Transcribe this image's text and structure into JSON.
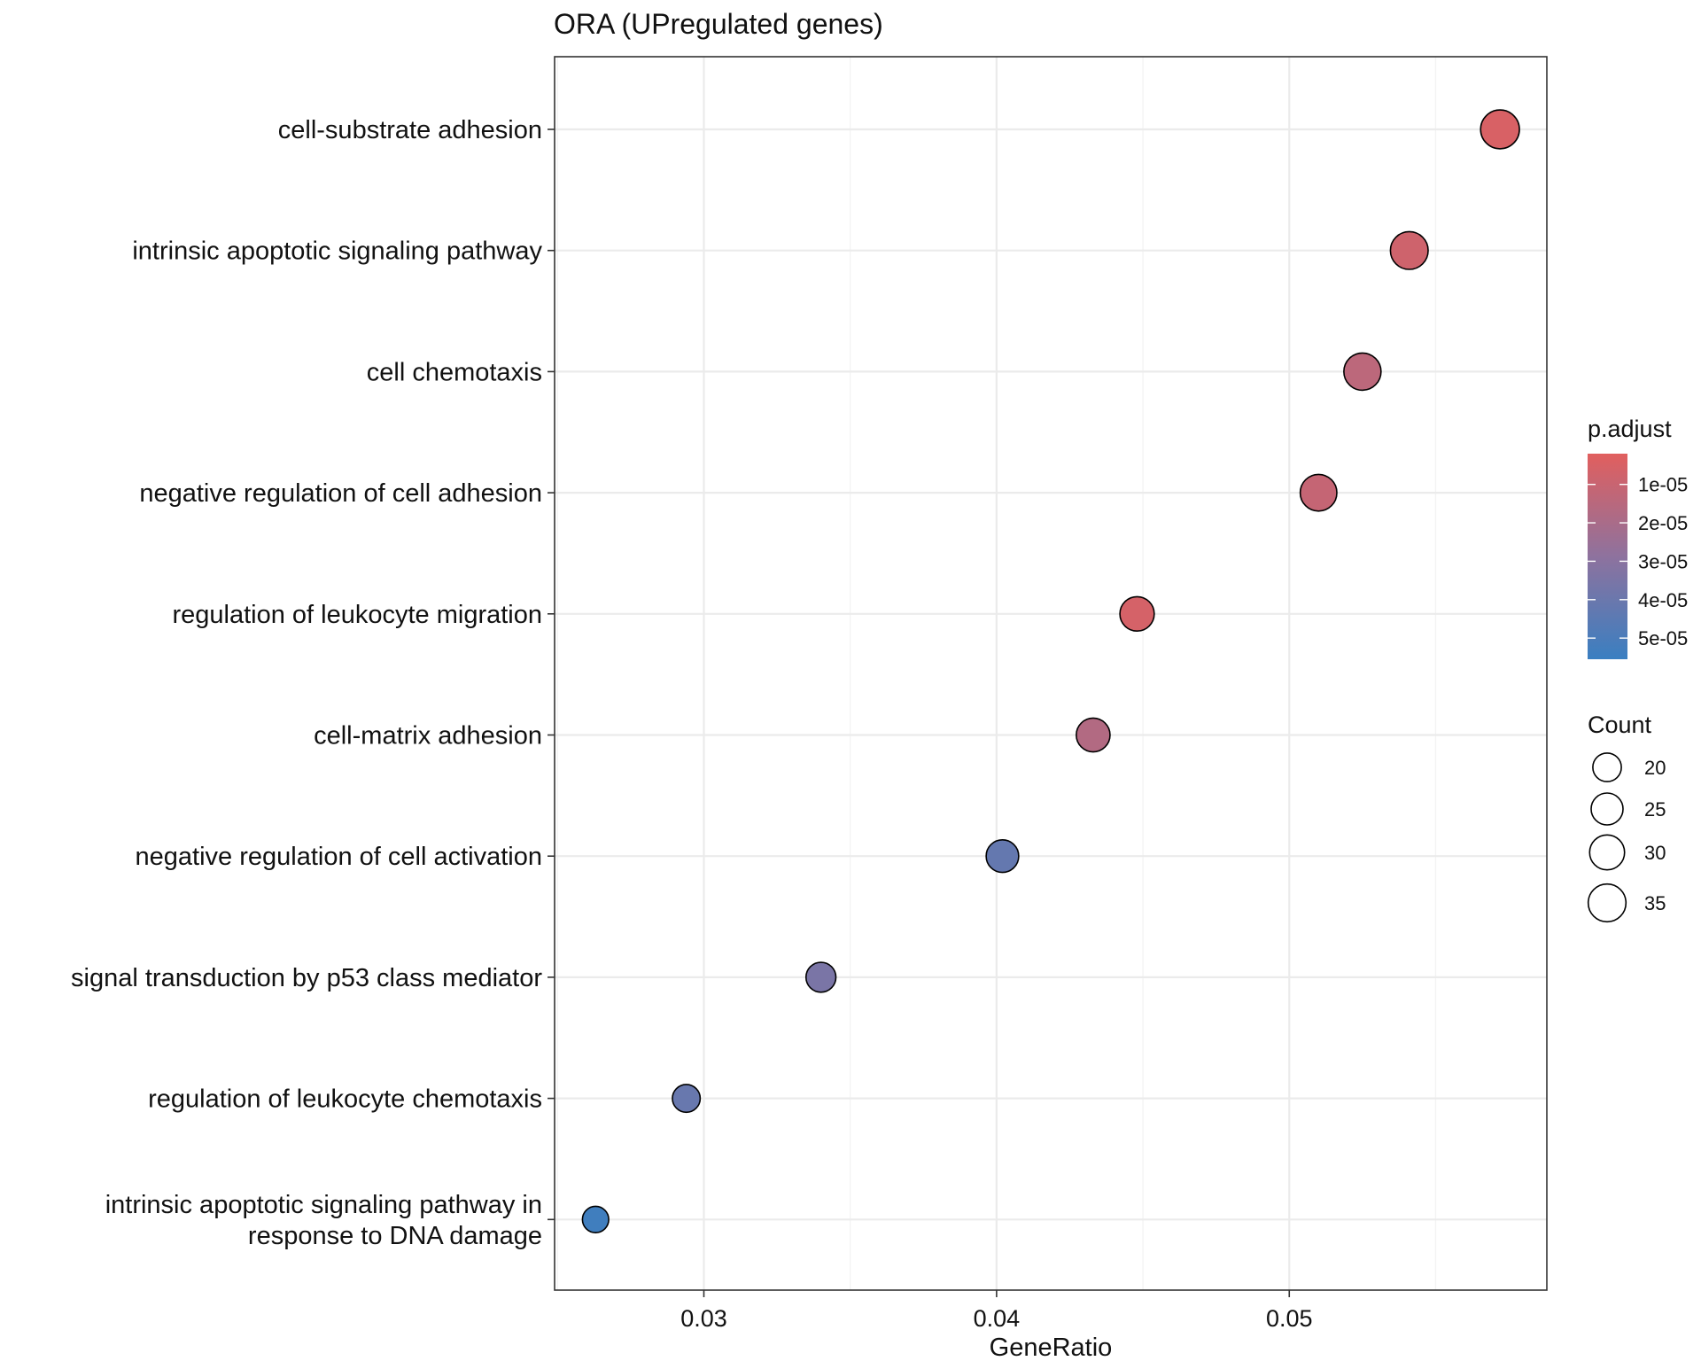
{
  "chart_data": {
    "type": "scatter",
    "title": "ORA (UPregulated genes)",
    "xlabel": "GeneRatio",
    "ylabel": "",
    "xlim": [
      0.0249,
      0.0588
    ],
    "x_ticks": [
      0.03,
      0.04,
      0.05
    ],
    "x_tick_labels": [
      "0.03",
      "0.04",
      "0.05"
    ],
    "grid": true,
    "points": [
      {
        "term": [
          "cell-substrate adhesion"
        ],
        "gene_ratio": 0.0572,
        "count": 37,
        "p_adjust": 5e-06
      },
      {
        "term": [
          "intrinsic apoptotic signaling pathway"
        ],
        "gene_ratio": 0.0541,
        "count": 35,
        "p_adjust": 8e-06
      },
      {
        "term": [
          "cell chemotaxis"
        ],
        "gene_ratio": 0.0525,
        "count": 34,
        "p_adjust": 1.4e-05
      },
      {
        "term": [
          "negative regulation of cell adhesion"
        ],
        "gene_ratio": 0.051,
        "count": 33,
        "p_adjust": 1.1e-05
      },
      {
        "term": [
          "regulation of leukocyte migration"
        ],
        "gene_ratio": 0.0448,
        "count": 29,
        "p_adjust": 6e-06
      },
      {
        "term": [
          "cell-matrix adhesion"
        ],
        "gene_ratio": 0.0433,
        "count": 28,
        "p_adjust": 1.7e-05
      },
      {
        "term": [
          "negative regulation of cell activation"
        ],
        "gene_ratio": 0.0402,
        "count": 26,
        "p_adjust": 4.2e-05
      },
      {
        "term": [
          "signal transduction by p53 class mediator"
        ],
        "gene_ratio": 0.034,
        "count": 22,
        "p_adjust": 3.5e-05
      },
      {
        "term": [
          "regulation of leukocyte chemotaxis"
        ],
        "gene_ratio": 0.0294,
        "count": 19,
        "p_adjust": 4.1e-05
      },
      {
        "term": [
          "intrinsic apoptotic signaling pathway in",
          "response to DNA damage"
        ],
        "gene_ratio": 0.0263,
        "count": 17,
        "p_adjust": 5.35e-05
      }
    ],
    "color_legend": {
      "title": "p.adjust",
      "range": [
        2e-06,
        5.55e-05
      ],
      "low_color": "#E15F5E",
      "high_color": "#3A7FC1",
      "mid_color": "#8E729E",
      "ticks": [
        1e-05,
        2e-05,
        3e-05,
        4e-05,
        5e-05
      ],
      "tick_labels": [
        "1e-05",
        "2e-05",
        "3e-05",
        "4e-05",
        "5e-05"
      ]
    },
    "size_legend": {
      "title": "Count",
      "values": [
        20,
        25,
        30,
        35
      ],
      "labels": [
        "20",
        "25",
        "30",
        "35"
      ]
    }
  }
}
